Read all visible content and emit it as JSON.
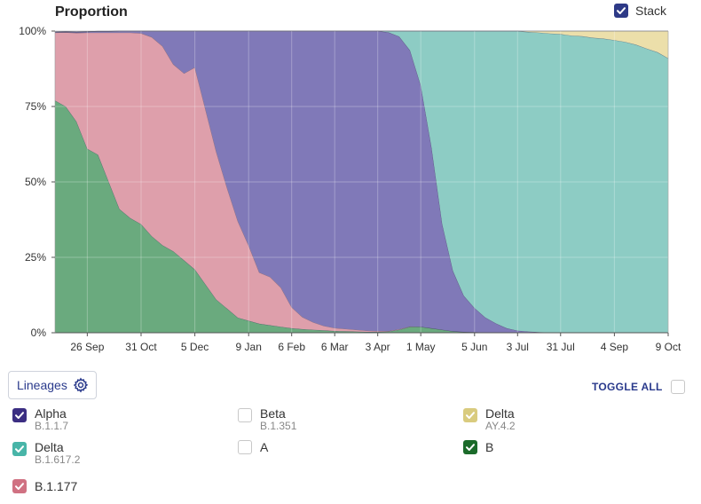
{
  "title": "Proportion",
  "stack": {
    "label": "Stack",
    "checked": true,
    "color": "#2e3a87"
  },
  "lineages_button": {
    "label": "Lineages",
    "icon": "gear-icon"
  },
  "toggle_all": {
    "label": "TOGGLE ALL",
    "checked": false
  },
  "lineages": [
    {
      "name": "Alpha",
      "sub": "B.1.1.7",
      "checked": true,
      "color": "#3b2e82"
    },
    {
      "name": "Beta",
      "sub": "B.1.351",
      "checked": false,
      "color": "#c8c8c8"
    },
    {
      "name": "Delta",
      "sub": "AY.4.2",
      "checked": true,
      "color": "#d9cb7e"
    },
    {
      "name": "Delta",
      "sub": "B.1.617.2",
      "checked": true,
      "color": "#48b5a8"
    },
    {
      "name": "A",
      "sub": "",
      "checked": false,
      "color": "#c8c8c8"
    },
    {
      "name": "B",
      "sub": "",
      "checked": true,
      "color": "#1b6b2a"
    },
    {
      "name": "B.1.177",
      "sub": "",
      "checked": true,
      "color": "#d07182"
    }
  ],
  "chart_data": {
    "type": "area",
    "stacked": true,
    "title": "Proportion",
    "xlabel": "",
    "ylabel": "",
    "ylim": [
      0,
      1
    ],
    "y_ticks": [
      "0%",
      "25%",
      "50%",
      "75%",
      "100%"
    ],
    "x_ticks": [
      "26 Sep",
      "31 Oct",
      "5 Dec",
      "9 Jan",
      "6 Feb",
      "6 Mar",
      "3 Apr",
      "1 May",
      "5 Jun",
      "3 Jul",
      "31 Jul",
      "4 Sep",
      "9 Oct"
    ],
    "grid": true,
    "x": [
      "2020-09-05",
      "2020-09-12",
      "2020-09-19",
      "2020-09-26",
      "2020-10-03",
      "2020-10-10",
      "2020-10-17",
      "2020-10-24",
      "2020-10-31",
      "2020-11-07",
      "2020-11-14",
      "2020-11-21",
      "2020-11-28",
      "2020-12-05",
      "2020-12-12",
      "2020-12-19",
      "2020-12-26",
      "2021-01-02",
      "2021-01-09",
      "2021-01-16",
      "2021-01-23",
      "2021-01-30",
      "2021-02-06",
      "2021-02-13",
      "2021-02-20",
      "2021-02-27",
      "2021-03-06",
      "2021-03-13",
      "2021-03-20",
      "2021-03-27",
      "2021-04-03",
      "2021-04-10",
      "2021-04-17",
      "2021-04-24",
      "2021-05-01",
      "2021-05-08",
      "2021-05-15",
      "2021-05-22",
      "2021-05-29",
      "2021-06-05",
      "2021-06-12",
      "2021-06-19",
      "2021-06-26",
      "2021-07-03",
      "2021-07-10",
      "2021-07-17",
      "2021-07-24",
      "2021-07-31",
      "2021-08-07",
      "2021-08-14",
      "2021-08-21",
      "2021-08-28",
      "2021-09-04",
      "2021-09-11",
      "2021-09-18",
      "2021-09-25",
      "2021-10-02",
      "2021-10-09"
    ],
    "series": [
      {
        "name": "B",
        "color": "#6aaa7e",
        "values": [
          0.77,
          0.75,
          0.7,
          0.61,
          0.59,
          0.5,
          0.41,
          0.38,
          0.36,
          0.32,
          0.29,
          0.27,
          0.24,
          0.21,
          0.16,
          0.11,
          0.08,
          0.05,
          0.04,
          0.03,
          0.025,
          0.02,
          0.015,
          0.012,
          0.01,
          0.008,
          0.006,
          0.005,
          0.004,
          0.003,
          0.003,
          0.004,
          0.01,
          0.02,
          0.02,
          0.015,
          0.01,
          0.005,
          0.003,
          0.002,
          0.001,
          0.001,
          0.0,
          0.0,
          0.0,
          0.0,
          0.0,
          0.0,
          0.0,
          0.0,
          0.0,
          0.0,
          0.0,
          0.0,
          0.0,
          0.0,
          0.0,
          0.0
        ]
      },
      {
        "name": "B.1.177",
        "color": "#de9fab",
        "values": [
          0.225,
          0.246,
          0.294,
          0.385,
          0.405,
          0.495,
          0.585,
          0.615,
          0.633,
          0.66,
          0.66,
          0.62,
          0.62,
          0.67,
          0.58,
          0.49,
          0.4,
          0.32,
          0.25,
          0.17,
          0.16,
          0.13,
          0.07,
          0.04,
          0.025,
          0.015,
          0.01,
          0.008,
          0.006,
          0.004,
          0.003,
          0.002,
          0.002,
          0.001,
          0.0,
          0.0,
          0.0,
          0.0,
          0.0,
          0.0,
          0.0,
          0.0,
          0.0,
          0.0,
          0.0,
          0.0,
          0.0,
          0.0,
          0.0,
          0.0,
          0.0,
          0.0,
          0.0,
          0.0,
          0.0,
          0.0,
          0.0,
          0.0
        ]
      },
      {
        "name": "Alpha",
        "color": "#8079b8",
        "values": [
          0.002,
          0.002,
          0.003,
          0.003,
          0.004,
          0.004,
          0.005,
          0.006,
          0.008,
          0.02,
          0.05,
          0.11,
          0.14,
          0.12,
          0.26,
          0.4,
          0.52,
          0.63,
          0.71,
          0.8,
          0.815,
          0.85,
          0.915,
          0.948,
          0.965,
          0.977,
          0.984,
          0.987,
          0.99,
          0.993,
          0.994,
          0.99,
          0.97,
          0.915,
          0.8,
          0.6,
          0.35,
          0.2,
          0.12,
          0.08,
          0.05,
          0.03,
          0.015,
          0.007,
          0.004,
          0.002,
          0.001,
          0.0,
          0.0,
          0.0,
          0.0,
          0.0,
          0.0,
          0.0,
          0.0,
          0.0,
          0.0,
          0.0
        ]
      },
      {
        "name": "Delta B.1.617.2",
        "color": "#8dccc4",
        "values": [
          0,
          0,
          0,
          0,
          0,
          0,
          0,
          0,
          0,
          0,
          0,
          0,
          0,
          0,
          0,
          0,
          0,
          0,
          0,
          0,
          0,
          0,
          0,
          0,
          0,
          0,
          0,
          0,
          0,
          0,
          0,
          0.004,
          0.018,
          0.064,
          0.18,
          0.385,
          0.64,
          0.795,
          0.877,
          0.918,
          0.949,
          0.969,
          0.985,
          0.993,
          0.993,
          0.993,
          0.991,
          0.99,
          0.985,
          0.983,
          0.978,
          0.975,
          0.97,
          0.964,
          0.955,
          0.942,
          0.93,
          0.91
        ]
      },
      {
        "name": "Delta AY.4.2",
        "color": "#ecdfaa",
        "values": [
          0,
          0,
          0,
          0,
          0,
          0,
          0,
          0,
          0,
          0,
          0,
          0,
          0,
          0,
          0,
          0,
          0,
          0,
          0,
          0,
          0,
          0,
          0,
          0,
          0,
          0,
          0,
          0,
          0,
          0,
          0,
          0,
          0,
          0,
          0,
          0,
          0,
          0,
          0,
          0,
          0,
          0,
          0,
          0,
          0.003,
          0.005,
          0.008,
          0.01,
          0.015,
          0.017,
          0.022,
          0.025,
          0.03,
          0.036,
          0.045,
          0.058,
          0.07,
          0.09
        ]
      }
    ]
  }
}
